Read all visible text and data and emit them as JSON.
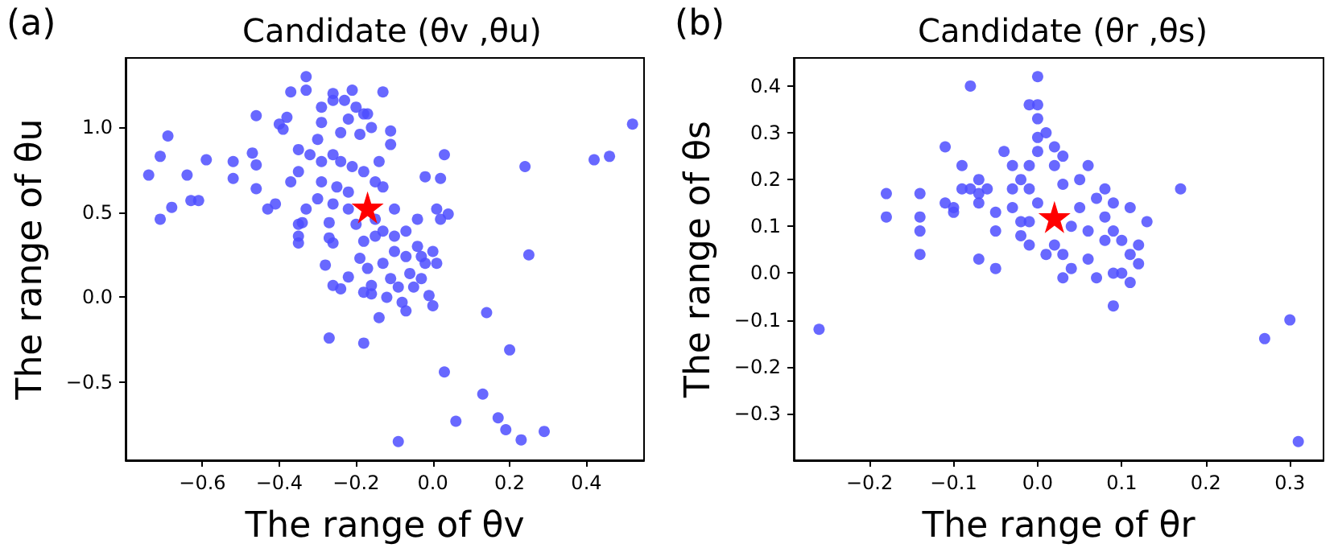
{
  "chart_data": [
    {
      "type": "scatter",
      "title": "Candidate (θv ,θu)",
      "xlabel": "The range of θv",
      "ylabel": "The range of θu",
      "annotations": [
        "(a)"
      ],
      "grid": false,
      "xlim": [
        -0.8,
        0.55
      ],
      "ylim": [
        -0.96,
        1.41
      ],
      "xticks": [
        {
          "value": -0.6,
          "label": "−0.6"
        },
        {
          "value": -0.4,
          "label": "−0.4"
        },
        {
          "value": -0.2,
          "label": "−0.2"
        },
        {
          "value": 0,
          "label": "0.0"
        },
        {
          "value": 0.2,
          "label": "0.2"
        },
        {
          "value": 0.4,
          "label": "0.4"
        }
      ],
      "yticks": [
        {
          "value": -0.5,
          "label": "−0.5"
        },
        {
          "value": 0,
          "label": "0.0"
        },
        {
          "value": 0.5,
          "label": "0.5"
        },
        {
          "value": 1,
          "label": "1.0"
        }
      ],
      "series": [
        {
          "color": "#4d4dff",
          "marker": "circle",
          "x": [
            -0.74,
            -0.71,
            -0.69,
            -0.71,
            -0.68,
            -0.64,
            -0.63,
            -0.61,
            -0.59,
            -0.52,
            -0.52,
            -0.46,
            -0.46,
            -0.46,
            -0.47,
            -0.43,
            -0.41,
            -0.33,
            -0.33,
            -0.37,
            -0.26,
            -0.26,
            -0.23,
            -0.21,
            -0.2,
            -0.13,
            -0.29,
            -0.29,
            -0.22,
            -0.18,
            -0.17,
            -0.16,
            -0.11,
            -0.38,
            -0.4,
            -0.39,
            -0.3,
            -0.24,
            -0.19,
            -0.35,
            -0.32,
            -0.29,
            -0.26,
            -0.24,
            -0.21,
            -0.18,
            -0.35,
            -0.37,
            -0.29,
            -0.25,
            -0.22,
            -0.15,
            -0.14,
            -0.11,
            -0.13,
            -0.1,
            -0.15,
            -0.13,
            -0.1,
            -0.07,
            -0.04,
            -0.03,
            -0.07,
            -0.1,
            -0.13,
            -0.02,
            -0.04,
            -0.02,
            0.02,
            0.03,
            0.01,
            0.04,
            0.02,
            0.01,
            0,
            -0.06,
            -0.11,
            -0.15,
            -0.18,
            -0.2,
            -0.22,
            -0.26,
            -0.3,
            -0.33,
            -0.35,
            -0.35,
            -0.35,
            -0.34,
            -0.27,
            -0.27,
            -0.26,
            -0.28,
            -0.26,
            -0.24,
            -0.22,
            -0.19,
            -0.17,
            -0.16,
            -0.18,
            -0.16,
            -0.12,
            -0.08,
            -0.07,
            0,
            -0.01,
            -0.09,
            -0.05,
            -0.03,
            -0.14,
            -0.27,
            -0.18,
            0.14,
            0.2,
            0.03,
            0.13,
            0.06,
            0.17,
            0.19,
            0.23,
            0.29,
            -0.09,
            0.24,
            0.25,
            0.42,
            0.46,
            0.52
          ],
          "values": [
            0.72,
            0.83,
            0.95,
            0.46,
            0.53,
            0.72,
            0.57,
            0.57,
            0.81,
            0.8,
            0.7,
            0.78,
            1.07,
            0.64,
            0.85,
            0.52,
            0.55,
            1.3,
            1.22,
            1.21,
            1.2,
            1.16,
            1.16,
            1.22,
            1.12,
            1.21,
            1.12,
            1.03,
            1.05,
            1.08,
            1.08,
            1,
            0.98,
            1.06,
            1.02,
            0.99,
            0.93,
            0.97,
            0.96,
            0.87,
            0.84,
            0.8,
            0.84,
            0.8,
            0.77,
            0.74,
            0.74,
            0.68,
            0.68,
            0.65,
            0.62,
            0.68,
            0.8,
            0.9,
            0.65,
            0.52,
            0.46,
            0.39,
            0.36,
            0.39,
            0.3,
            0.24,
            0.24,
            0.27,
            0.2,
            0.2,
            0.46,
            0.71,
            0.7,
            0.84,
            0.52,
            0.49,
            0.46,
            0.2,
            0.27,
            0.14,
            0.11,
            0.36,
            0.33,
            0.43,
            0.52,
            0.55,
            0.58,
            0.52,
            0.43,
            0.36,
            0.32,
            0.44,
            0.44,
            0.35,
            0.32,
            0.19,
            0.07,
            0.05,
            0.12,
            0.23,
            0.17,
            0.07,
            0.03,
            0.02,
            0,
            -0.03,
            -0.08,
            -0.05,
            0.01,
            0.06,
            0.06,
            0.11,
            -0.12,
            -0.24,
            -0.27,
            -0.09,
            -0.31,
            -0.44,
            -0.57,
            -0.73,
            -0.71,
            -0.78,
            -0.84,
            -0.79,
            -0.85,
            0.77,
            0.25,
            0.81,
            0.83,
            1.02
          ]
        },
        {
          "color": "#ff0000",
          "marker": "star",
          "x": [
            -0.17
          ],
          "values": [
            0.53
          ]
        }
      ]
    },
    {
      "type": "scatter",
      "title": "Candidate (θr ,θs)",
      "xlabel": "The range of θr",
      "ylabel": "The range of θs",
      "annotations": [
        "(b)"
      ],
      "grid": false,
      "xlim": [
        -0.29,
        0.34
      ],
      "ylim": [
        -0.4,
        0.46
      ],
      "xticks": [
        {
          "value": -0.2,
          "label": "−0.2"
        },
        {
          "value": -0.1,
          "label": "−0.1"
        },
        {
          "value": 0,
          "label": "0.0"
        },
        {
          "value": 0.1,
          "label": "0.1"
        },
        {
          "value": 0.2,
          "label": "0.2"
        },
        {
          "value": 0.3,
          "label": "0.3"
        }
      ],
      "yticks": [
        {
          "value": -0.3,
          "label": "−0.3"
        },
        {
          "value": -0.2,
          "label": "−0.2"
        },
        {
          "value": -0.1,
          "label": "−0.1"
        },
        {
          "value": 0,
          "label": "0.0"
        },
        {
          "value": 0.1,
          "label": "0.1"
        },
        {
          "value": 0.2,
          "label": "0.2"
        },
        {
          "value": 0.3,
          "label": "0.3"
        },
        {
          "value": 0.4,
          "label": "0.4"
        }
      ],
      "series": [
        {
          "color": "#4d4dff",
          "marker": "circle",
          "x": [
            -0.26,
            -0.18,
            -0.18,
            -0.14,
            -0.14,
            -0.14,
            -0.14,
            -0.11,
            -0.11,
            -0.1,
            -0.1,
            -0.09,
            -0.09,
            -0.08,
            -0.08,
            -0.07,
            -0.07,
            -0.07,
            -0.07,
            -0.05,
            -0.05,
            -0.06,
            -0.05,
            -0.04,
            -0.03,
            -0.03,
            -0.03,
            -0.02,
            -0.02,
            -0.02,
            -0.01,
            -0.01,
            0,
            0,
            0,
            0,
            0,
            -0.01,
            0,
            -0.01,
            -0.01,
            0.01,
            0.01,
            0.02,
            0.02,
            0.02,
            0.03,
            0.03,
            0.03,
            0.03,
            0.04,
            0.04,
            0.05,
            0.05,
            0.06,
            0.06,
            0.06,
            0.07,
            0.07,
            0.08,
            0.08,
            0.08,
            0.09,
            0.09,
            0.09,
            0.09,
            0.1,
            0.1,
            0.11,
            0.11,
            0.11,
            0.12,
            0.12,
            0.13,
            0.17,
            0.27,
            0.3,
            0.31
          ],
          "values": [
            -0.12,
            0.17,
            0.12,
            0.17,
            0.12,
            0.09,
            0.04,
            0.27,
            0.15,
            0.13,
            0.14,
            0.18,
            0.23,
            0.4,
            0.18,
            0.2,
            0.17,
            0.15,
            0.03,
            0.01,
            0.09,
            0.18,
            0.13,
            0.26,
            0.14,
            0.18,
            0.23,
            0.11,
            0.08,
            0.2,
            0.23,
            0.36,
            0.36,
            0.42,
            0.33,
            0.29,
            0.26,
            0.18,
            0.15,
            0.11,
            0.06,
            0.04,
            0.3,
            0.27,
            0.23,
            0.06,
            0.25,
            0.19,
            0.04,
            -0.01,
            0.01,
            0.1,
            0.14,
            0.2,
            0.23,
            0.03,
            0.09,
            0.16,
            -0.01,
            0.07,
            0.18,
            0.12,
            0.15,
            0,
            -0.07,
            0.09,
            0.07,
            0,
            0.14,
            0.04,
            -0.02,
            0.06,
            0.02,
            0.11,
            0.18,
            -0.14,
            -0.1,
            -0.36
          ]
        },
        {
          "color": "#ff0000",
          "marker": "star",
          "x": [
            0.02
          ],
          "values": [
            0.12
          ]
        }
      ]
    }
  ]
}
